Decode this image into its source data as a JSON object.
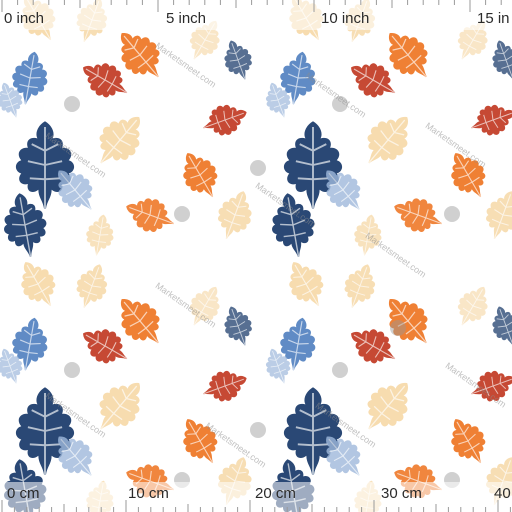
{
  "ruler_top": {
    "unit": "inch",
    "labels": [
      "0 inch",
      "5 inch",
      "10 inch",
      "15 in"
    ]
  },
  "ruler_bottom": {
    "unit": "cm",
    "labels": [
      "0 cm",
      "10 cm",
      "20 cm",
      "30 cm",
      "40"
    ]
  },
  "watermark": {
    "text": "Marketsmeet.com"
  },
  "colors": {
    "navy": "#1f3f6e",
    "blue": "#4f7fbf",
    "lightblue": "#9fb9dc",
    "orange": "#ef7a2a",
    "red": "#c3402a",
    "cream": "#f6d6a2",
    "peach": "#f3b67a"
  },
  "icons": {
    "leaf": "oak-leaf-icon",
    "logo": "sm-logo-icon"
  }
}
